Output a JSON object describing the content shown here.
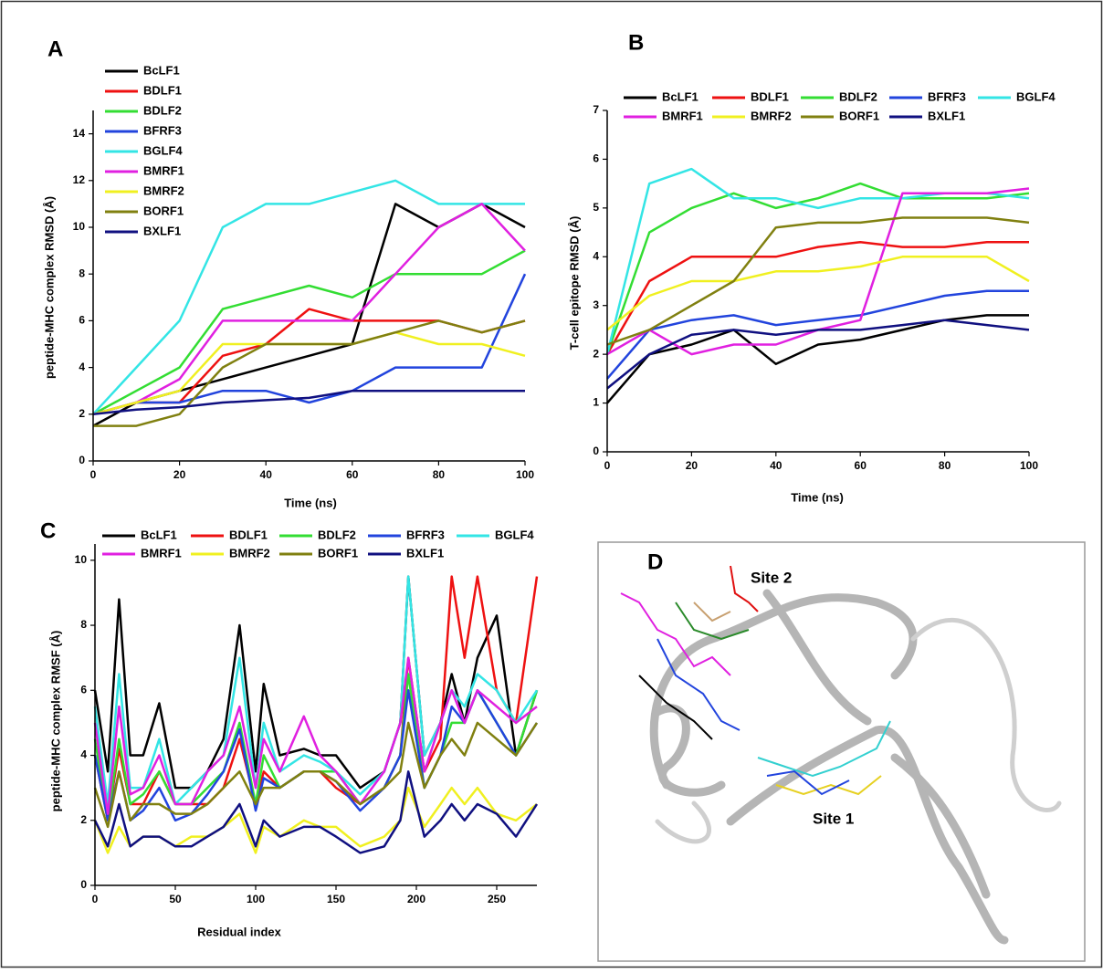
{
  "chart_data": [
    {
      "type": "line",
      "panel": "A",
      "x_label": "Time (ns)",
      "y_label": "peptide-MHC complex RMSD (Å)",
      "x": [
        0,
        10,
        20,
        30,
        40,
        50,
        60,
        70,
        80,
        90,
        100
      ],
      "xlim": [
        0,
        100
      ],
      "xticks": [
        0,
        20,
        40,
        60,
        80,
        100
      ],
      "ylim": [
        0,
        15
      ],
      "yticks": [
        0,
        2,
        4,
        6,
        8,
        10,
        12,
        14
      ],
      "legend_columns": 1,
      "series": [
        {
          "name": "BcLF1",
          "color": "#000000",
          "values": [
            1.5,
            2.5,
            3,
            3.5,
            4,
            4.5,
            5,
            11,
            10,
            11,
            10
          ]
        },
        {
          "name": "BDLF1",
          "color": "#ee1111",
          "values": [
            2,
            2.5,
            2.5,
            4.5,
            5,
            6.5,
            6,
            6,
            6,
            5.5,
            6
          ]
        },
        {
          "name": "BDLF2",
          "color": "#33dd33",
          "values": [
            2,
            3,
            4,
            6.5,
            7,
            7.5,
            7,
            8,
            8,
            8,
            9
          ]
        },
        {
          "name": "BFRF3",
          "color": "#2244dd",
          "values": [
            2,
            2.5,
            2.5,
            3,
            3,
            2.5,
            3,
            4,
            4,
            4,
            8
          ]
        },
        {
          "name": "BGLF4",
          "color": "#33e5e5",
          "values": [
            2,
            4,
            6,
            10,
            11,
            11,
            11.5,
            12,
            11,
            11,
            11
          ]
        },
        {
          "name": "BMRF1",
          "color": "#e020e0",
          "values": [
            2,
            2.5,
            3.5,
            6,
            6,
            6,
            6,
            8,
            10,
            11,
            9
          ]
        },
        {
          "name": "BMRF2",
          "color": "#f0f020",
          "values": [
            2,
            2.5,
            3,
            5,
            5,
            5,
            5,
            5.5,
            5,
            5,
            4.5
          ]
        },
        {
          "name": "BORF1",
          "color": "#808010",
          "values": [
            1.5,
            1.5,
            2,
            4,
            5,
            5,
            5,
            5.5,
            6,
            5.5,
            6
          ]
        },
        {
          "name": "BXLF1",
          "color": "#101080",
          "values": [
            2,
            2.2,
            2.3,
            2.5,
            2.6,
            2.7,
            3,
            3,
            3,
            3,
            3
          ]
        }
      ]
    },
    {
      "type": "line",
      "panel": "B",
      "x_label": "Time (ns)",
      "y_label": "T-cell epitope RMSD (Å)",
      "x": [
        0,
        10,
        20,
        30,
        40,
        50,
        60,
        70,
        80,
        90,
        100
      ],
      "xlim": [
        0,
        100
      ],
      "xticks": [
        0,
        20,
        40,
        60,
        80,
        100
      ],
      "ylim": [
        0,
        7
      ],
      "yticks": [
        0,
        1,
        2,
        3,
        4,
        5,
        6,
        7
      ],
      "legend_columns": 5,
      "series": [
        {
          "name": "BcLF1",
          "color": "#000000",
          "values": [
            1,
            2,
            2.2,
            2.5,
            1.8,
            2.2,
            2.3,
            2.5,
            2.7,
            2.8,
            2.8
          ]
        },
        {
          "name": "BDLF1",
          "color": "#ee1111",
          "values": [
            2,
            3.5,
            4,
            4,
            4,
            4.2,
            4.3,
            4.2,
            4.2,
            4.3,
            4.3
          ]
        },
        {
          "name": "BDLF2",
          "color": "#33dd33",
          "values": [
            2,
            4.5,
            5,
            5.3,
            5,
            5.2,
            5.5,
            5.2,
            5.2,
            5.2,
            5.3
          ]
        },
        {
          "name": "BFRF3",
          "color": "#2244dd",
          "values": [
            1.5,
            2.5,
            2.7,
            2.8,
            2.6,
            2.7,
            2.8,
            3,
            3.2,
            3.3,
            3.3
          ]
        },
        {
          "name": "BGLF4",
          "color": "#33e5e5",
          "values": [
            2,
            5.5,
            5.8,
            5.2,
            5.2,
            5,
            5.2,
            5.2,
            5.3,
            5.3,
            5.2
          ]
        },
        {
          "name": "BMRF1",
          "color": "#e020e0",
          "values": [
            2,
            2.5,
            2,
            2.2,
            2.2,
            2.5,
            2.7,
            5.3,
            5.3,
            5.3,
            5.4
          ]
        },
        {
          "name": "BMRF2",
          "color": "#f0f020",
          "values": [
            2.5,
            3.2,
            3.5,
            3.5,
            3.7,
            3.7,
            3.8,
            4,
            4,
            4,
            3.5
          ]
        },
        {
          "name": "BORF1",
          "color": "#808010",
          "values": [
            2.2,
            2.5,
            3,
            3.5,
            4.6,
            4.7,
            4.7,
            4.8,
            4.8,
            4.8,
            4.7
          ]
        },
        {
          "name": "BXLF1",
          "color": "#101080",
          "values": [
            1.3,
            2,
            2.4,
            2.5,
            2.4,
            2.5,
            2.5,
            2.6,
            2.7,
            2.6,
            2.5
          ]
        }
      ]
    },
    {
      "type": "line",
      "panel": "C",
      "x_label": "Residual index",
      "y_label": "peptide-MHC complex RMSF (Å)",
      "x": [
        0,
        8,
        15,
        22,
        30,
        40,
        50,
        60,
        70,
        80,
        90,
        100,
        105,
        115,
        130,
        140,
        150,
        165,
        180,
        190,
        195,
        205,
        215,
        222,
        230,
        238,
        250,
        262,
        275
      ],
      "xlim": [
        0,
        275
      ],
      "xticks": [
        0,
        50,
        100,
        150,
        200,
        250
      ],
      "ylim": [
        0,
        10.5
      ],
      "yticks": [
        0,
        2,
        4,
        6,
        8,
        10
      ],
      "legend_columns": 5,
      "series": [
        {
          "name": "BcLF1",
          "color": "#000000",
          "values": [
            6,
            3.5,
            8.8,
            4,
            4,
            5.6,
            3,
            3,
            3.5,
            4.5,
            8,
            3.5,
            6.2,
            4,
            4.2,
            4,
            4,
            3,
            3.5,
            5,
            9.5,
            4,
            5,
            6.5,
            5,
            7,
            8.3,
            4,
            6
          ]
        },
        {
          "name": "BDLF1",
          "color": "#ee1111",
          "values": [
            4,
            2,
            4.2,
            2.5,
            2.5,
            3.5,
            2.5,
            2.5,
            2.5,
            3,
            4.5,
            2.5,
            3.5,
            3,
            3.5,
            3.5,
            3,
            2.5,
            3,
            4,
            7,
            3.5,
            4.5,
            9.5,
            7,
            9.5,
            6,
            5,
            9.5
          ]
        },
        {
          "name": "BDLF2",
          "color": "#33dd33",
          "values": [
            4.5,
            2,
            4.5,
            2.5,
            2.8,
            3.5,
            2.5,
            2.5,
            3,
            3.5,
            5,
            2.5,
            4,
            3,
            3.5,
            3.5,
            3.5,
            2.5,
            3,
            4,
            6.5,
            3,
            4,
            5,
            5,
            6,
            5,
            4,
            6
          ]
        },
        {
          "name": "BFRF3",
          "color": "#2244dd",
          "values": [
            4,
            2,
            3.5,
            2,
            2.3,
            3,
            2,
            2.2,
            2.8,
            3.5,
            4.8,
            2.3,
            3.3,
            3,
            3.5,
            3.5,
            3.2,
            2.3,
            3,
            4,
            6,
            3,
            4,
            5.5,
            5,
            6,
            5,
            4,
            5
          ]
        },
        {
          "name": "BGLF4",
          "color": "#33e5e5",
          "values": [
            5.5,
            2.5,
            6.5,
            3,
            3,
            4.5,
            2.5,
            3,
            3.5,
            4,
            7,
            3,
            5,
            3.5,
            4,
            3.8,
            3.5,
            2.8,
            3.5,
            5,
            9.5,
            4,
            5,
            6,
            5.5,
            6.5,
            6,
            5,
            6
          ]
        },
        {
          "name": "BMRF1",
          "color": "#e020e0",
          "values": [
            5,
            2.2,
            5.5,
            2.8,
            3,
            4,
            2.5,
            2.5,
            3.5,
            4,
            5.5,
            3,
            4.5,
            3.5,
            5.2,
            4,
            3.5,
            2.5,
            3.5,
            5,
            7,
            3.5,
            5,
            6,
            5,
            6,
            5.5,
            5,
            5.5
          ]
        },
        {
          "name": "BMRF2",
          "color": "#f0f020",
          "values": [
            2,
            1,
            1.8,
            1.2,
            1.5,
            1.5,
            1.2,
            1.5,
            1.5,
            1.8,
            2.2,
            1,
            1.8,
            1.5,
            2,
            1.8,
            1.8,
            1.2,
            1.5,
            2,
            3,
            1.8,
            2.5,
            3,
            2.5,
            3,
            2.2,
            2,
            2.5
          ]
        },
        {
          "name": "BORF1",
          "color": "#808010",
          "values": [
            3,
            1.8,
            3.5,
            2,
            2.5,
            2.5,
            2.2,
            2.2,
            2.5,
            3,
            3.5,
            2.5,
            3,
            3,
            3.5,
            3.5,
            3.2,
            2.5,
            3,
            3.5,
            5,
            3,
            4,
            4.5,
            4,
            5,
            4.5,
            4,
            5
          ]
        },
        {
          "name": "BXLF1",
          "color": "#101080",
          "values": [
            2,
            1.2,
            2.5,
            1.2,
            1.5,
            1.5,
            1.2,
            1.2,
            1.5,
            1.8,
            2.5,
            1.2,
            2,
            1.5,
            1.8,
            1.8,
            1.5,
            1,
            1.2,
            2,
            3.5,
            1.5,
            2,
            2.5,
            2,
            2.5,
            2.2,
            1.5,
            2.5
          ]
        }
      ]
    }
  ],
  "image_panel": {
    "panel": "D",
    "site_2": "Site 2",
    "site_1": "Site 1"
  }
}
